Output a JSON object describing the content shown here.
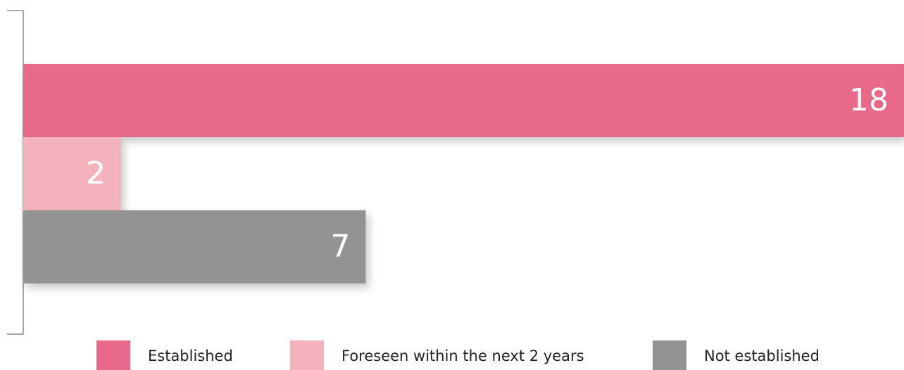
{
  "chart_data": {
    "type": "bar",
    "orientation": "horizontal",
    "categories": [
      null
    ],
    "series": [
      {
        "name": "Established",
        "color": "#e8698a",
        "values": [
          18
        ]
      },
      {
        "name": "Foreseen within the next 2 years",
        "color": "#f4b3bc",
        "values": [
          2
        ]
      },
      {
        "name": "Not established",
        "color": "#939393",
        "values": [
          7
        ]
      }
    ],
    "legend": "bottom"
  }
}
